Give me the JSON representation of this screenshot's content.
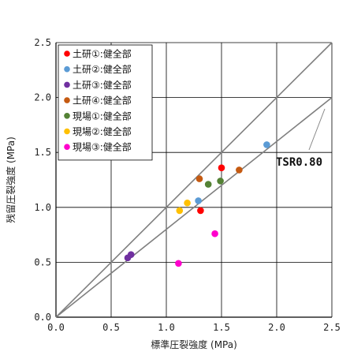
{
  "chart_data": {
    "type": "scatter",
    "xlabel": "標準圧裂強度 (MPa)",
    "ylabel": "残留圧裂強度 (MPa)",
    "xlim": [
      0,
      2.5
    ],
    "ylim": [
      0,
      2.5
    ],
    "x_ticks": [
      "0.0",
      "0.5",
      "1.0",
      "1.5",
      "2.0",
      "2.5"
    ],
    "y_ticks": [
      "0.0",
      "0.5",
      "1.0",
      "1.5",
      "2.0",
      "2.5"
    ],
    "grid": true,
    "legend_position": "top-left",
    "series": [
      {
        "name": "土研①:健全部",
        "color": "#ff0000",
        "points": [
          [
            1.5,
            1.36
          ],
          [
            1.31,
            0.97
          ]
        ]
      },
      {
        "name": "土研②:健全部",
        "color": "#5b9bd5",
        "points": [
          [
            1.91,
            1.57
          ],
          [
            1.29,
            1.06
          ]
        ]
      },
      {
        "name": "土研③:健全部",
        "color": "#7030a0",
        "points": [
          [
            0.68,
            0.57
          ],
          [
            0.65,
            0.54
          ]
        ]
      },
      {
        "name": "土研④:健全部",
        "color": "#c55a11",
        "points": [
          [
            1.3,
            1.26
          ],
          [
            1.66,
            1.34
          ]
        ]
      },
      {
        "name": "現場①:健全部",
        "color": "#548235",
        "points": [
          [
            1.38,
            1.21
          ],
          [
            1.49,
            1.24
          ]
        ]
      },
      {
        "name": "現場②:健全部",
        "color": "#ffc000",
        "points": [
          [
            1.12,
            0.97
          ],
          [
            1.19,
            1.04
          ]
        ]
      },
      {
        "name": "現場③:健全部",
        "color": "#ff00cc",
        "points": [
          [
            1.44,
            0.76
          ],
          [
            1.11,
            0.49
          ]
        ]
      }
    ],
    "reference_lines": [
      {
        "label": "",
        "x": [
          0,
          2.5
        ],
        "y": [
          0,
          2.5
        ],
        "color": "#7f7f7f"
      },
      {
        "label": "TSR0.80",
        "x": [
          0,
          2.5
        ],
        "y": [
          0,
          2.0
        ],
        "color": "#7f7f7f"
      }
    ]
  }
}
